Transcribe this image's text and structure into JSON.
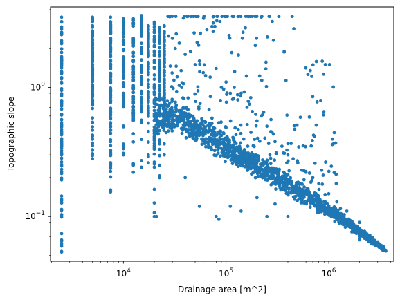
{
  "chart_data": {
    "type": "scatter",
    "title": "",
    "xlabel": "Drainage area [m^2]",
    "ylabel": "Topographic slope",
    "xscale": "log",
    "yscale": "log",
    "xlim": [
      1950,
      4300000
    ],
    "ylim": [
      0.045,
      4.2
    ],
    "grid": false,
    "legend": "none",
    "color": "#1f77b4",
    "x_ticks": [
      {
        "value": 10000,
        "base": "10",
        "exp": "4"
      },
      {
        "value": 100000,
        "base": "10",
        "exp": "5"
      },
      {
        "value": 1000000,
        "base": "10",
        "exp": "6"
      }
    ],
    "y_ticks": [
      {
        "value": 0.1,
        "base": "10",
        "exp": "−1"
      },
      {
        "value": 1,
        "base": "10",
        "exp": "0"
      }
    ],
    "series": [
      {
        "columns": [
          {
            "x": 2500,
            "y_min": 0.053,
            "y_max": 3.5
          },
          {
            "x": 5000,
            "y_min": 0.28,
            "y_max": 3.5
          },
          {
            "x": 7500,
            "y_min": 0.155,
            "y_max": 3.5
          },
          {
            "x": 10000,
            "y_min": 0.3,
            "y_max": 3.4
          },
          {
            "x": 12500,
            "y_min": 0.22,
            "y_max": 3.4
          },
          {
            "x": 15000,
            "y_min": 0.24,
            "y_max": 3.6
          },
          {
            "x": 17500,
            "y_min": 0.26,
            "y_max": 3.0
          },
          {
            "x": 20000,
            "y_min": 0.1,
            "y_max": 3.2
          },
          {
            "x": 22500,
            "y_min": 0.2,
            "y_max": 2.9
          },
          {
            "x": 25000,
            "y_min": 0.3,
            "y_max": 3.0
          }
        ],
        "points": [
          {
            "x": 27500,
            "y": 2.5
          },
          {
            "x": 30000,
            "y": 2.4
          },
          {
            "x": 32000,
            "y": 2.0
          },
          {
            "x": 35000,
            "y": 2.2
          },
          {
            "x": 40000,
            "y": 1.8
          },
          {
            "x": 45000,
            "y": 1.9
          },
          {
            "x": 50000,
            "y": 1.5
          },
          {
            "x": 55000,
            "y": 1.6
          },
          {
            "x": 60000,
            "y": 1.3
          },
          {
            "x": 65000,
            "y": 2.8
          },
          {
            "x": 70000,
            "y": 1.2
          },
          {
            "x": 80000,
            "y": 1.4
          },
          {
            "x": 90000,
            "y": 1.0
          },
          {
            "x": 100000,
            "y": 1.1
          },
          {
            "x": 110000,
            "y": 0.9
          },
          {
            "x": 120000,
            "y": 1.0
          },
          {
            "x": 130000,
            "y": 0.8
          },
          {
            "x": 140000,
            "y": 0.9
          },
          {
            "x": 160000,
            "y": 0.7
          },
          {
            "x": 180000,
            "y": 0.65
          },
          {
            "x": 200000,
            "y": 0.55
          },
          {
            "x": 220000,
            "y": 0.6
          },
          {
            "x": 250000,
            "y": 0.5
          },
          {
            "x": 280000,
            "y": 0.45
          },
          {
            "x": 300000,
            "y": 0.38
          },
          {
            "x": 350000,
            "y": 0.35
          },
          {
            "x": 400000,
            "y": 0.3
          },
          {
            "x": 450000,
            "y": 0.28
          },
          {
            "x": 500000,
            "y": 0.26
          },
          {
            "x": 600000,
            "y": 0.22
          },
          {
            "x": 700000,
            "y": 0.2
          },
          {
            "x": 800000,
            "y": 0.18
          },
          {
            "x": 1000000,
            "y": 0.15
          },
          {
            "x": 1200000,
            "y": 0.13
          },
          {
            "x": 1300000,
            "y": 0.115
          },
          {
            "x": 1500000,
            "y": 0.11
          },
          {
            "x": 2000000,
            "y": 0.09
          },
          {
            "x": 2500000,
            "y": 0.068
          },
          {
            "x": 3000000,
            "y": 0.06
          },
          {
            "x": 3600000,
            "y": 0.054
          },
          {
            "x": 21000,
            "y": 0.1
          },
          {
            "x": 40000,
            "y": 0.2
          },
          {
            "x": 55000,
            "y": 0.12
          },
          {
            "x": 80000,
            "y": 0.1
          },
          {
            "x": 85000,
            "y": 0.095
          },
          {
            "x": 110000,
            "y": 0.12
          },
          {
            "x": 140000,
            "y": 0.11
          },
          {
            "x": 200000,
            "y": 0.14
          },
          {
            "x": 250000,
            "y": 0.1
          },
          {
            "x": 300000,
            "y": 0.125
          },
          {
            "x": 400000,
            "y": 0.1
          },
          {
            "x": 600000,
            "y": 0.13
          },
          {
            "x": 900000,
            "y": 0.13
          },
          {
            "x": 2000000,
            "y": 0.066
          }
        ],
        "trend_band": [
          {
            "x": 20000,
            "y_min": 0.4,
            "y_max": 0.9
          },
          {
            "x": 35000,
            "y_min": 0.42,
            "y_max": 0.8
          },
          {
            "x": 60000,
            "y_min": 0.33,
            "y_max": 0.6
          },
          {
            "x": 100000,
            "y_min": 0.26,
            "y_max": 0.46
          },
          {
            "x": 200000,
            "y_min": 0.19,
            "y_max": 0.32
          },
          {
            "x": 400000,
            "y_min": 0.14,
            "y_max": 0.22
          },
          {
            "x": 800000,
            "y_min": 0.105,
            "y_max": 0.15
          },
          {
            "x": 1500000,
            "y_min": 0.08,
            "y_max": 0.1
          },
          {
            "x": 3500000,
            "y_min": 0.053,
            "y_max": 0.058
          }
        ]
      }
    ]
  }
}
